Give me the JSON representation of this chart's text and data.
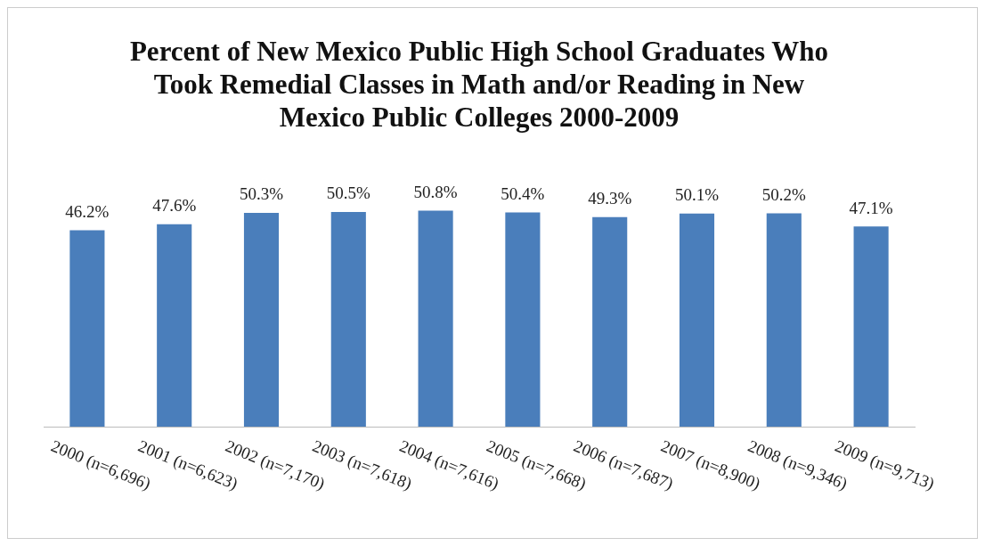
{
  "chart_data": {
    "type": "bar",
    "title": "Percent of New Mexico Public High School Graduates Who Took Remedial Classes in Math and/or Reading in New Mexico Public Colleges 2000-2009",
    "categories": [
      "2000 (n=6,696)",
      "2001 (n=6,623)",
      "2002 (n=7,170)",
      "2003 (n=7,618)",
      "2004 (n=7,616)",
      "2005 (n=7,668)",
      "2006 (n=7,687)",
      "2007 (n=8,900)",
      "2008 (n=9,346)",
      "2009 (n=9,713)"
    ],
    "values": [
      46.2,
      47.6,
      50.3,
      50.5,
      50.8,
      50.4,
      49.3,
      50.1,
      50.2,
      47.1
    ],
    "value_labels": [
      "46.2%",
      "47.6%",
      "50.3%",
      "50.5%",
      "50.8%",
      "50.4%",
      "49.3%",
      "50.1%",
      "50.2%",
      "47.1%"
    ],
    "color": "#4a7ebb",
    "tick_labels": "x",
    "grid": false,
    "legend": false
  }
}
